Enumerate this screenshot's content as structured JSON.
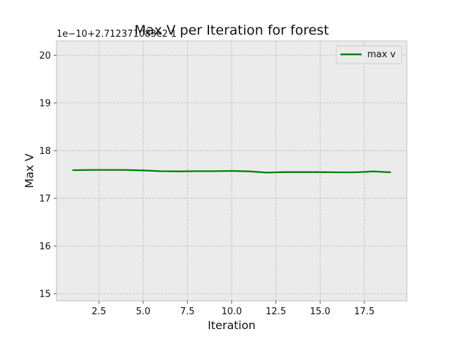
{
  "chart_data": {
    "type": "line",
    "title": "Max V per Iteration for forest",
    "xlabel": "Iteration",
    "ylabel": "Max V",
    "y_offset_text": "1e−10+2.71237108​3e2 1",
    "xlim": [
      0.1,
      19.9
    ],
    "ylim": [
      14.85,
      20.3
    ],
    "x_ticks": [
      2.5,
      5.0,
      7.5,
      10.0,
      12.5,
      15.0,
      17.5
    ],
    "x_tick_labels": [
      "2.5",
      "5.0",
      "7.5",
      "10.0",
      "12.5",
      "15.0",
      "17.5"
    ],
    "y_ticks": [
      15,
      16,
      17,
      18,
      19,
      20
    ],
    "y_tick_labels": [
      "15",
      "16",
      "17",
      "18",
      "19",
      "20"
    ],
    "grid": true,
    "legend_position": "top-right",
    "series": [
      {
        "name": "max v",
        "color": "#008000",
        "x": [
          1,
          2,
          3,
          4,
          5,
          6,
          7,
          8,
          9,
          10,
          11,
          12,
          13,
          14,
          15,
          16,
          17,
          18,
          19
        ],
        "values": [
          17.59,
          17.595,
          17.595,
          17.595,
          17.585,
          17.57,
          17.565,
          17.57,
          17.57,
          17.575,
          17.565,
          17.54,
          17.55,
          17.55,
          17.55,
          17.545,
          17.545,
          17.565,
          17.545
        ]
      }
    ]
  }
}
